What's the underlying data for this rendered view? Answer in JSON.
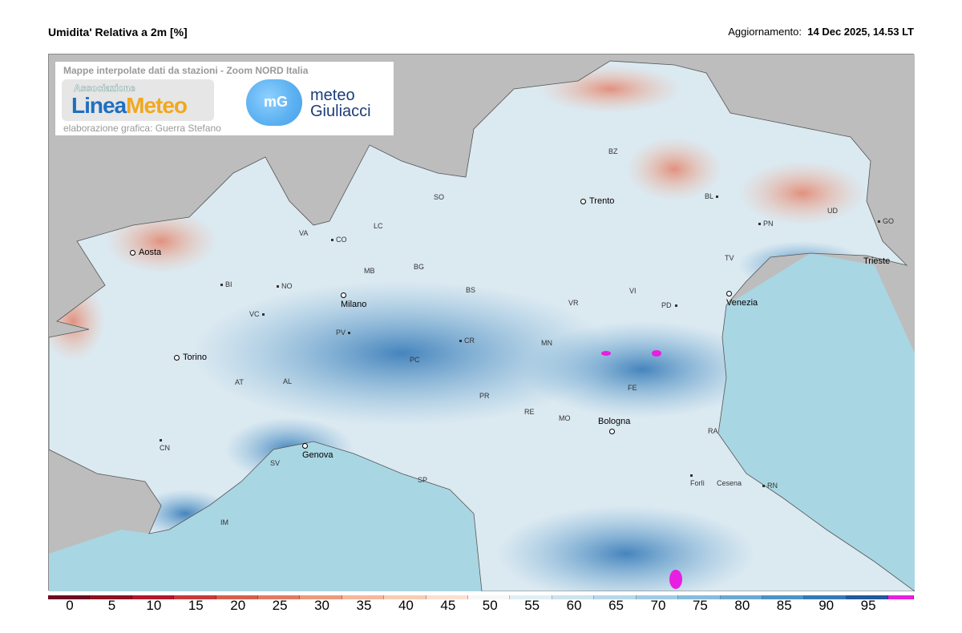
{
  "header": {
    "title": "Umidita' Relativa a 2m [%]",
    "update_label": "Aggiornamento:",
    "update_value": "14 Dec 2025, 14.53 LT"
  },
  "logo_box": {
    "heading": "Mappe interpolate dati da stazioni - Zoom NORD Italia",
    "linea_small": "Associazione",
    "linea_a": "Linea",
    "linea_b": "Meteo",
    "credit": "elaborazione grafica: Guerra Stefano",
    "mg_icon": "mG",
    "mg_line1": "meteo",
    "mg_line2": "Giuliacci"
  },
  "cities": [
    "Aosta",
    "Torino",
    "Milano",
    "Genova",
    "Trento",
    "Venezia",
    "Bologna",
    "Trieste",
    "Forlì",
    "Cesena"
  ],
  "provinces": [
    "BI",
    "NO",
    "VA",
    "CO",
    "LC",
    "SO",
    "MB",
    "BG",
    "BS",
    "VC",
    "PV",
    "AL",
    "AT",
    "CN",
    "SV",
    "IM",
    "PC",
    "CR",
    "MN",
    "VR",
    "VI",
    "PD",
    "TV",
    "BL",
    "PN",
    "UD",
    "GO",
    "BZ",
    "PR",
    "RE",
    "MO",
    "FE",
    "RA",
    "RN",
    "SP"
  ],
  "colorbar": {
    "labels": [
      "0",
      "5",
      "10",
      "15",
      "20",
      "25",
      "30",
      "35",
      "40",
      "45",
      "50",
      "55",
      "60",
      "65",
      "70",
      "75",
      "80",
      "85",
      "90",
      "95"
    ],
    "colors": [
      "#6b0a22",
      "#8c1024",
      "#b2182b",
      "#c73a3a",
      "#d6604d",
      "#e27b62",
      "#eb9a7e",
      "#f4b89c",
      "#f8cdb4",
      "#fbe0d0",
      "#f7f7f7",
      "#e1eef5",
      "#cde4ef",
      "#b7d8ea",
      "#a1cce4",
      "#86bddc",
      "#6aa9d2",
      "#4d93c6",
      "#3579b7",
      "#21599c",
      "#e81ee0"
    ]
  }
}
